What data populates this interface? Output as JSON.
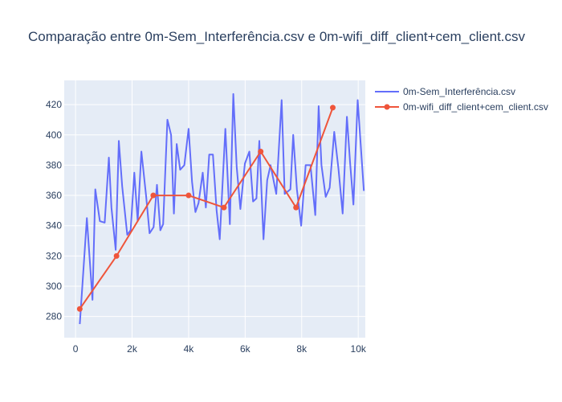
{
  "chart_data": {
    "type": "line",
    "title": "Comparação entre 0m-Sem_Interferência.csv e 0m-wifi_diff_client+cem_client.csv",
    "xlabel": "",
    "ylabel": "",
    "xlim": [
      -400,
      10250
    ],
    "ylim": [
      266,
      436
    ],
    "x_ticks": [
      0,
      2000,
      4000,
      6000,
      8000,
      10000
    ],
    "x_tick_labels": [
      "0",
      "2k",
      "4k",
      "6k",
      "8k",
      "10k"
    ],
    "y_ticks": [
      280,
      300,
      320,
      340,
      360,
      380,
      400,
      420
    ],
    "y_tick_labels": [
      "280",
      "300",
      "320",
      "340",
      "360",
      "380",
      "400",
      "420"
    ],
    "grid": true,
    "legend_position": "top-right",
    "series": [
      {
        "name": "0m-Sem_Interferência.csv",
        "mode": "lines",
        "color": "#636efa",
        "x": [
          150,
          400,
          600,
          700,
          860,
          1030,
          1180,
          1270,
          1420,
          1530,
          1650,
          1830,
          1950,
          2080,
          2200,
          2330,
          2500,
          2620,
          2760,
          2880,
          3000,
          3100,
          3250,
          3380,
          3480,
          3580,
          3700,
          3850,
          4000,
          4120,
          4240,
          4350,
          4500,
          4610,
          4730,
          4860,
          4990,
          5100,
          5300,
          5460,
          5580,
          5700,
          5830,
          5990,
          6150,
          6280,
          6400,
          6500,
          6650,
          6780,
          6900,
          7100,
          7290,
          7400,
          7600,
          7700,
          7830,
          7980,
          8140,
          8310,
          8480,
          8600,
          8700,
          8850,
          8990,
          9150,
          9300,
          9450,
          9600,
          9710,
          9830,
          9980,
          10200
        ],
        "y": [
          275,
          345,
          291,
          364,
          343,
          342,
          385,
          352,
          324,
          396,
          366,
          334,
          337,
          375,
          343,
          389,
          359,
          335,
          339,
          367,
          337,
          341,
          410,
          400,
          348,
          394,
          377,
          380,
          404,
          369,
          349,
          355,
          375,
          352,
          387,
          387,
          350,
          331,
          404,
          341,
          427,
          379,
          351,
          381,
          389,
          356,
          358,
          396,
          331,
          370,
          380,
          361,
          423,
          361,
          364,
          400,
          364,
          340,
          380,
          380,
          347,
          419,
          380,
          359,
          365,
          402,
          378,
          348,
          412,
          382,
          354,
          423,
          363
        ]
      },
      {
        "name": "0m-wifi_diff_client+cem_client.csv",
        "mode": "lines+markers",
        "color": "#ef553b",
        "x": [
          150,
          1450,
          2750,
          4000,
          5250,
          6550,
          7800,
          9100
        ],
        "y": [
          285,
          320,
          360,
          360,
          352,
          389,
          352,
          418
        ]
      }
    ]
  }
}
